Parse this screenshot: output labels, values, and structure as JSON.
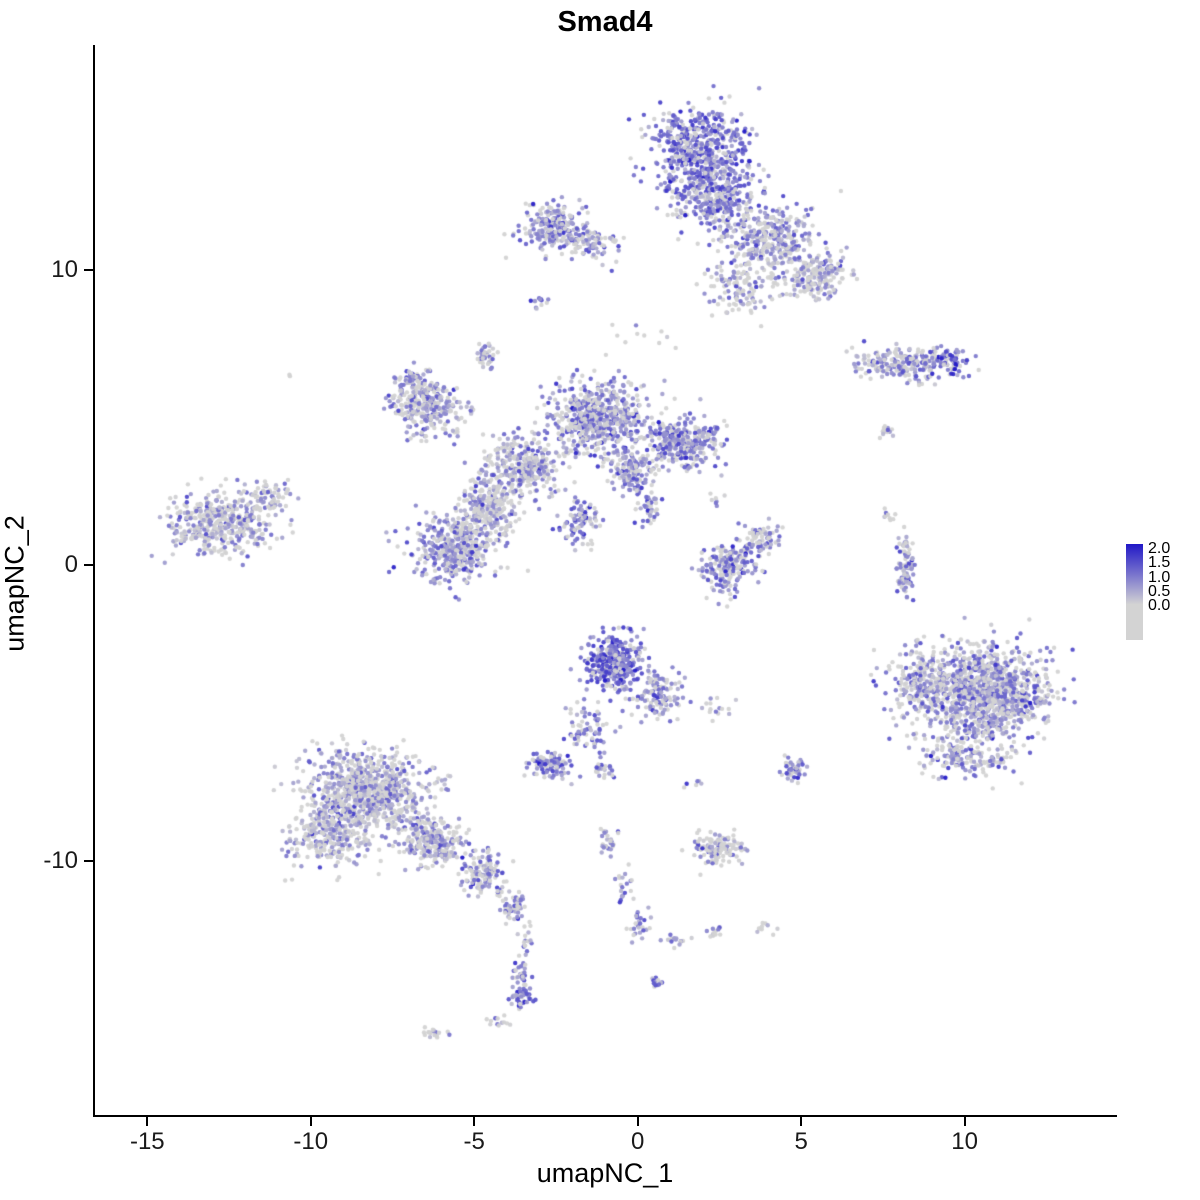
{
  "title": "Smad4",
  "chart_data": {
    "type": "scatter",
    "title": "Smad4",
    "xlabel": "umapNC_1",
    "ylabel": "umapNC_2",
    "xlim": [
      -16.6,
      14.6
    ],
    "ylim": [
      -18.6,
      17.6
    ],
    "x_ticks": [
      "-15",
      "-10",
      "-5",
      "0",
      "5",
      "10"
    ],
    "x_tick_values": [
      -15,
      -10,
      -5,
      0,
      5,
      10
    ],
    "y_ticks": [
      "-10",
      "0",
      "10"
    ],
    "y_tick_values": [
      -10,
      0,
      10
    ],
    "grid": false,
    "point_radius": 2.2,
    "color_scale": {
      "low_value": 0.0,
      "high_value": 2.0,
      "low_color": "#D3D3D3",
      "high_color": "#2118C7"
    },
    "legend": {
      "position": "right",
      "tick_labels": [
        "2.0",
        "1.5",
        "1.0",
        "0.5",
        "0.0"
      ]
    },
    "clusters": [
      {
        "x": 1.9,
        "y": 14.1,
        "sx": 0.75,
        "sy": 0.7,
        "n": 550,
        "mu": 1.0,
        "zf": 0.15
      },
      {
        "x": 2.3,
        "y": 12.4,
        "sx": 0.65,
        "sy": 0.5,
        "n": 300,
        "mu": 0.9,
        "zf": 0.2
      },
      {
        "x": 4.0,
        "y": 11.0,
        "sx": 0.7,
        "sy": 0.55,
        "n": 350,
        "mu": 0.7,
        "zf": 0.3
      },
      {
        "x": 5.5,
        "y": 9.8,
        "sx": 0.5,
        "sy": 0.4,
        "n": 180,
        "mu": 0.6,
        "zf": 0.35
      },
      {
        "x": 3.2,
        "y": 9.4,
        "sx": 0.5,
        "sy": 0.4,
        "n": 120,
        "mu": 0.5,
        "zf": 0.45
      },
      {
        "x": -2.6,
        "y": 11.4,
        "sx": 0.5,
        "sy": 0.4,
        "n": 220,
        "mu": 0.8,
        "zf": 0.25
      },
      {
        "x": -1.4,
        "y": 10.9,
        "sx": 0.4,
        "sy": 0.3,
        "n": 80,
        "mu": 0.7,
        "zf": 0.3
      },
      {
        "x": -3.0,
        "y": 8.9,
        "sx": 0.12,
        "sy": 0.15,
        "n": 12,
        "mu": 0.8,
        "zf": 0.2
      },
      {
        "x": -4.7,
        "y": 7.1,
        "sx": 0.15,
        "sy": 0.25,
        "n": 40,
        "mu": 0.6,
        "zf": 0.3
      },
      {
        "x": 0.4,
        "y": 7.9,
        "sx": 0.5,
        "sy": 0.3,
        "n": 10,
        "mu": 0.2,
        "zf": 0.6
      },
      {
        "x": 8.3,
        "y": 6.8,
        "sx": 0.85,
        "sy": 0.3,
        "n": 220,
        "mu": 0.6,
        "zf": 0.35
      },
      {
        "x": 9.4,
        "y": 6.9,
        "sx": 0.35,
        "sy": 0.25,
        "n": 60,
        "mu": 1.1,
        "zf": 0.2
      },
      {
        "x": 7.6,
        "y": 4.6,
        "sx": 0.15,
        "sy": 0.15,
        "n": 15,
        "mu": 0.5,
        "zf": 0.4
      },
      {
        "x": -1.2,
        "y": 5.0,
        "sx": 0.7,
        "sy": 0.6,
        "n": 600,
        "mu": 0.8,
        "zf": 0.3
      },
      {
        "x": 1.4,
        "y": 4.2,
        "sx": 0.6,
        "sy": 0.4,
        "n": 320,
        "mu": 0.9,
        "zf": 0.25
      },
      {
        "x": -3.5,
        "y": 3.3,
        "sx": 0.65,
        "sy": 0.5,
        "n": 350,
        "mu": 0.6,
        "zf": 0.4
      },
      {
        "x": -6.5,
        "y": 5.3,
        "sx": 0.5,
        "sy": 0.5,
        "n": 280,
        "mu": 0.7,
        "zf": 0.3
      },
      {
        "x": -5.6,
        "y": 0.6,
        "sx": 0.6,
        "sy": 0.55,
        "n": 450,
        "mu": 0.7,
        "zf": 0.35
      },
      {
        "x": -4.5,
        "y": 2.0,
        "sx": 0.45,
        "sy": 0.45,
        "n": 200,
        "mu": 0.5,
        "zf": 0.45
      },
      {
        "x": -1.8,
        "y": 1.5,
        "sx": 0.3,
        "sy": 0.45,
        "n": 90,
        "mu": 0.9,
        "zf": 0.25
      },
      {
        "x": -0.2,
        "y": 3.2,
        "sx": 0.35,
        "sy": 0.35,
        "n": 150,
        "mu": 0.7,
        "zf": 0.3
      },
      {
        "x": 0.3,
        "y": 1.9,
        "sx": 0.2,
        "sy": 0.3,
        "n": 40,
        "mu": 0.8,
        "zf": 0.3
      },
      {
        "x": -6.9,
        "y": 6.3,
        "sx": 0.3,
        "sy": 0.25,
        "n": 60,
        "mu": 0.7,
        "zf": 0.3
      },
      {
        "x": -12.8,
        "y": 1.4,
        "sx": 0.8,
        "sy": 0.5,
        "n": 450,
        "mu": 0.55,
        "zf": 0.45
      },
      {
        "x": -11.2,
        "y": 2.3,
        "sx": 0.35,
        "sy": 0.3,
        "n": 60,
        "mu": 0.5,
        "zf": 0.45
      },
      {
        "x": -10.6,
        "y": 6.4,
        "sx": 0.05,
        "sy": 0.05,
        "n": 2,
        "mu": 0.0,
        "zf": 1.0
      },
      {
        "x": 2.8,
        "y": 0.0,
        "sx": 0.45,
        "sy": 0.5,
        "n": 200,
        "mu": 0.9,
        "zf": 0.3
      },
      {
        "x": 3.8,
        "y": 0.9,
        "sx": 0.3,
        "sy": 0.25,
        "n": 60,
        "mu": 0.6,
        "zf": 0.35
      },
      {
        "x": 2.5,
        "y": 2.3,
        "sx": 0.15,
        "sy": 0.3,
        "n": 8,
        "mu": 0.4,
        "zf": 0.5
      },
      {
        "x": 8.2,
        "y": 0.0,
        "sx": 0.13,
        "sy": 0.55,
        "n": 90,
        "mu": 0.7,
        "zf": 0.3
      },
      {
        "x": 7.7,
        "y": 1.7,
        "sx": 0.1,
        "sy": 0.15,
        "n": 10,
        "mu": 0.5,
        "zf": 0.4
      },
      {
        "x": 10.6,
        "y": -4.3,
        "sx": 1.0,
        "sy": 0.8,
        "n": 1100,
        "mu": 0.75,
        "zf": 0.35
      },
      {
        "x": 8.6,
        "y": -4.0,
        "sx": 0.45,
        "sy": 0.6,
        "n": 180,
        "mu": 0.6,
        "zf": 0.4
      },
      {
        "x": 10.1,
        "y": -6.5,
        "sx": 0.8,
        "sy": 0.35,
        "n": 150,
        "mu": 0.7,
        "zf": 0.35
      },
      {
        "x": -0.7,
        "y": -3.3,
        "sx": 0.45,
        "sy": 0.45,
        "n": 350,
        "mu": 1.1,
        "zf": 0.15
      },
      {
        "x": 0.6,
        "y": -4.4,
        "sx": 0.35,
        "sy": 0.4,
        "n": 120,
        "mu": 0.8,
        "zf": 0.25
      },
      {
        "x": -1.5,
        "y": -5.5,
        "sx": 0.35,
        "sy": 0.45,
        "n": 70,
        "mu": 0.7,
        "zf": 0.3
      },
      {
        "x": -2.7,
        "y": -6.7,
        "sx": 0.3,
        "sy": 0.22,
        "n": 90,
        "mu": 0.9,
        "zf": 0.2
      },
      {
        "x": -1.1,
        "y": -6.9,
        "sx": 0.2,
        "sy": 0.15,
        "n": 25,
        "mu": 0.7,
        "zf": 0.3
      },
      {
        "x": 2.5,
        "y": -4.8,
        "sx": 0.35,
        "sy": 0.2,
        "n": 15,
        "mu": 0.5,
        "zf": 0.45
      },
      {
        "x": 4.8,
        "y": -7.0,
        "sx": 0.2,
        "sy": 0.2,
        "n": 45,
        "mu": 0.8,
        "zf": 0.25
      },
      {
        "x": -8.3,
        "y": -7.7,
        "sx": 0.85,
        "sy": 0.7,
        "n": 900,
        "mu": 0.55,
        "zf": 0.4
      },
      {
        "x": -9.5,
        "y": -9.2,
        "sx": 0.6,
        "sy": 0.5,
        "n": 250,
        "mu": 0.55,
        "zf": 0.4
      },
      {
        "x": -6.3,
        "y": -9.3,
        "sx": 0.5,
        "sy": 0.4,
        "n": 250,
        "mu": 0.6,
        "zf": 0.35
      },
      {
        "x": -4.7,
        "y": -10.5,
        "sx": 0.4,
        "sy": 0.35,
        "n": 120,
        "mu": 0.7,
        "zf": 0.3
      },
      {
        "x": -4.0,
        "y": -11.7,
        "sx": 0.2,
        "sy": 0.3,
        "n": 30,
        "mu": 0.6,
        "zf": 0.35
      },
      {
        "x": 2.4,
        "y": -9.6,
        "sx": 0.4,
        "sy": 0.25,
        "n": 130,
        "mu": 0.5,
        "zf": 0.5
      },
      {
        "x": -0.9,
        "y": -9.4,
        "sx": 0.2,
        "sy": 0.25,
        "n": 25,
        "mu": 0.6,
        "zf": 0.35
      },
      {
        "x": -0.4,
        "y": -10.9,
        "sx": 0.15,
        "sy": 0.3,
        "n": 20,
        "mu": 0.7,
        "zf": 0.3
      },
      {
        "x": 0.0,
        "y": -12.2,
        "sx": 0.2,
        "sy": 0.25,
        "n": 25,
        "mu": 0.8,
        "zf": 0.25
      },
      {
        "x": 1.2,
        "y": -12.7,
        "sx": 0.25,
        "sy": 0.15,
        "n": 15,
        "mu": 0.6,
        "zf": 0.35
      },
      {
        "x": 2.4,
        "y": -12.4,
        "sx": 0.15,
        "sy": 0.12,
        "n": 12,
        "mu": 0.5,
        "zf": 0.4
      },
      {
        "x": 3.9,
        "y": -12.3,
        "sx": 0.2,
        "sy": 0.12,
        "n": 10,
        "mu": 0.4,
        "zf": 0.5
      },
      {
        "x": -3.6,
        "y": -11.3,
        "sx": 0.12,
        "sy": 0.3,
        "n": 20,
        "mu": 0.6,
        "zf": 0.35
      },
      {
        "x": -3.4,
        "y": -12.6,
        "sx": 0.1,
        "sy": 0.3,
        "n": 15,
        "mu": 0.6,
        "zf": 0.35
      },
      {
        "x": -3.6,
        "y": -13.9,
        "sx": 0.15,
        "sy": 0.25,
        "n": 30,
        "mu": 0.9,
        "zf": 0.2
      },
      {
        "x": -3.5,
        "y": -14.6,
        "sx": 0.2,
        "sy": 0.2,
        "n": 40,
        "mu": 1.0,
        "zf": 0.15
      },
      {
        "x": -4.3,
        "y": -15.4,
        "sx": 0.2,
        "sy": 0.12,
        "n": 12,
        "mu": 0.5,
        "zf": 0.4
      },
      {
        "x": -6.1,
        "y": -15.8,
        "sx": 0.25,
        "sy": 0.12,
        "n": 18,
        "mu": 0.4,
        "zf": 0.5
      },
      {
        "x": 0.6,
        "y": -14.1,
        "sx": 0.12,
        "sy": 0.12,
        "n": 12,
        "mu": 1.1,
        "zf": 0.15
      },
      {
        "x": 1.8,
        "y": -7.5,
        "sx": 0.2,
        "sy": 0.15,
        "n": 6,
        "mu": 0.4,
        "zf": 0.5
      }
    ]
  }
}
